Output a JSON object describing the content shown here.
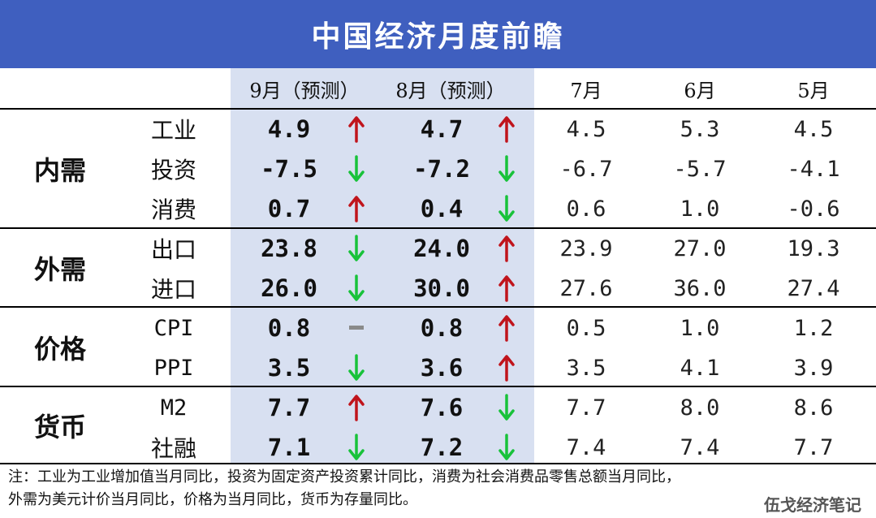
{
  "title": "中国经济月度前瞻",
  "headers": [
    "9月（预测）",
    "8月（预测）",
    "7月",
    "6月",
    "5月"
  ],
  "groups": [
    "内需",
    "外需",
    "价格",
    "货币"
  ],
  "rows": [
    {
      "label": "工业",
      "m9": "4.9",
      "m9_trend": "up",
      "m8": "4.7",
      "m8_trend": "up",
      "m7": "4.5",
      "m6": "5.3",
      "m5": "4.5"
    },
    {
      "label": "投资",
      "m9": "-7.5",
      "m9_trend": "down",
      "m8": "-7.2",
      "m8_trend": "down",
      "m7": "-6.7",
      "m6": "-5.7",
      "m5": "-4.1"
    },
    {
      "label": "消费",
      "m9": "0.7",
      "m9_trend": "up",
      "m8": "0.4",
      "m8_trend": "down",
      "m7": "0.6",
      "m6": "1.0",
      "m5": "-0.6"
    },
    {
      "label": "出口",
      "m9": "23.8",
      "m9_trend": "down",
      "m8": "24.0",
      "m8_trend": "up",
      "m7": "23.9",
      "m6": "27.0",
      "m5": "19.3"
    },
    {
      "label": "进口",
      "m9": "26.0",
      "m9_trend": "down",
      "m8": "30.0",
      "m8_trend": "up",
      "m7": "27.6",
      "m6": "36.0",
      "m5": "27.4"
    },
    {
      "label": "CPI",
      "m9": "0.8",
      "m9_trend": "flat",
      "m8": "0.8",
      "m8_trend": "up",
      "m7": "0.5",
      "m6": "1.0",
      "m5": "1.2"
    },
    {
      "label": "PPI",
      "m9": "3.5",
      "m9_trend": "down",
      "m8": "3.6",
      "m8_trend": "up",
      "m7": "3.5",
      "m6": "4.1",
      "m5": "3.9"
    },
    {
      "label": "M2",
      "m9": "7.7",
      "m9_trend": "up",
      "m8": "7.6",
      "m8_trend": "down",
      "m7": "7.7",
      "m6": "8.0",
      "m5": "8.6"
    },
    {
      "label": "社融",
      "m9": "7.1",
      "m9_trend": "down",
      "m8": "7.2",
      "m8_trend": "down",
      "m7": "7.4",
      "m6": "7.4",
      "m5": "7.7"
    }
  ],
  "note_line1": "注：工业为工业增加值当月同比，投资为固定资产投资累计同比，消费为社会消费品零售总额当月同比，",
  "note_line2": "外需为美元计价当月同比，价格为当月同比，货币为存量同比。",
  "watermark": "伍戈经济笔记",
  "colors": {
    "title_bg": "#3f5fbf",
    "forecast_bg": "#d8e0f1",
    "up": "#c0141c",
    "down": "#18c23a",
    "flat": "#8a8a8a"
  }
}
